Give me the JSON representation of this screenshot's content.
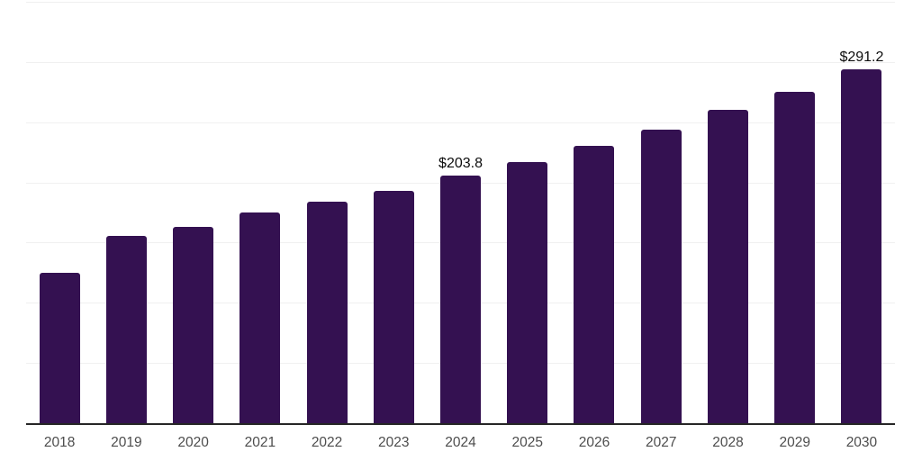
{
  "chart_data": {
    "type": "bar",
    "title": "",
    "xlabel": "",
    "ylabel": "",
    "categories": [
      "2018",
      "2019",
      "2020",
      "2021",
      "2022",
      "2023",
      "2024",
      "2025",
      "2026",
      "2027",
      "2028",
      "2029",
      "2030"
    ],
    "values": [
      124.0,
      154.3,
      161.5,
      173.2,
      182.2,
      191.1,
      203.8,
      214.8,
      228.2,
      241.5,
      257.8,
      272.6,
      291.2
    ],
    "data_labels": [
      "",
      "",
      "",
      "",
      "",
      "",
      "$203.8",
      "",
      "",
      "",
      "",
      "",
      "$291.2"
    ],
    "ylim": [
      0,
      347
    ],
    "grid": "horizontal-only",
    "gridline_count": 7,
    "legend": "none",
    "colors": {
      "bar": "#341151",
      "data_label": "#0d0d0d",
      "tick_label": "#4d4d4d",
      "axis_line": "#262626",
      "gridline": "#f0f0f0",
      "background": "#ffffff"
    }
  }
}
